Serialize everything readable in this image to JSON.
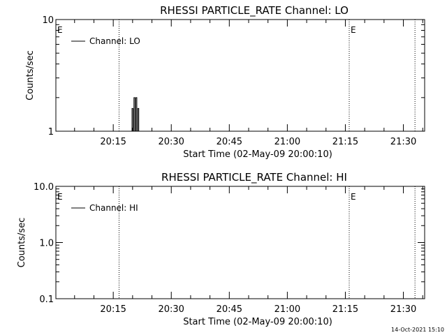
{
  "footer": {
    "timestamp": "14-Oct-2021 15:10"
  },
  "chart_data": [
    {
      "type": "line",
      "title": "RHESSI PARTICLE_RATE Channel: LO",
      "xlabel": "Start Time (02-May-09 20:00:10)",
      "ylabel": "Counts/sec",
      "yscale": "log",
      "ylim": [
        1,
        10
      ],
      "yticks": [
        {
          "value": 1,
          "label": "1"
        },
        {
          "value": 10,
          "label": "10"
        }
      ],
      "xlim_minutes_after_2000": [
        0.1667,
        41.5
      ],
      "xticks": [
        {
          "minutes": 15,
          "label": "20:15"
        },
        {
          "minutes": 30,
          "label": "20:30"
        },
        {
          "minutes": 45,
          "label": "20:45"
        },
        {
          "minutes": 60,
          "label": "21:00"
        },
        {
          "minutes": 75,
          "label": "21:15"
        },
        {
          "minutes": 90,
          "label": "21:30"
        }
      ],
      "legend": {
        "label": "Channel: LO",
        "placement": "top-left"
      },
      "markers": [
        {
          "minutes": 0.1667,
          "label": "E"
        },
        {
          "minutes": 76.0,
          "label": "E"
        }
      ],
      "vlines_minutes": [
        16.5,
        76.0,
        93.0
      ],
      "series": [
        {
          "name": "Channel: LO",
          "x": [
            19.6,
            19.85,
            20.1,
            20.35,
            20.6,
            20.85,
            21.1,
            21.35
          ],
          "y": [
            1,
            1.6,
            1,
            2,
            1,
            2,
            1,
            1.6
          ]
        }
      ]
    },
    {
      "type": "line",
      "title": "RHESSI PARTICLE_RATE Channel: HI",
      "xlabel": "Start Time (02-May-09 20:00:10)",
      "ylabel": "Counts/sec",
      "yscale": "log",
      "ylim": [
        0.1,
        10
      ],
      "yticks": [
        {
          "value": 0.1,
          "label": "0.1"
        },
        {
          "value": 1,
          "label": "1.0"
        },
        {
          "value": 10,
          "label": "10.0"
        }
      ],
      "xticks": [
        {
          "minutes": 15,
          "label": "20:15"
        },
        {
          "minutes": 30,
          "label": "20:30"
        },
        {
          "minutes": 45,
          "label": "20:45"
        },
        {
          "minutes": 60,
          "label": "21:00"
        },
        {
          "minutes": 75,
          "label": "21:15"
        },
        {
          "minutes": 90,
          "label": "21:30"
        }
      ],
      "legend": {
        "label": "Channel: HI",
        "placement": "top-left"
      },
      "markers": [
        {
          "minutes": 0.1667,
          "label": "E"
        },
        {
          "minutes": 76.0,
          "label": "E"
        }
      ],
      "vlines_minutes": [
        16.5,
        76.0,
        93.0
      ],
      "series": [
        {
          "name": "Channel: HI",
          "x": [],
          "y": []
        }
      ]
    }
  ]
}
